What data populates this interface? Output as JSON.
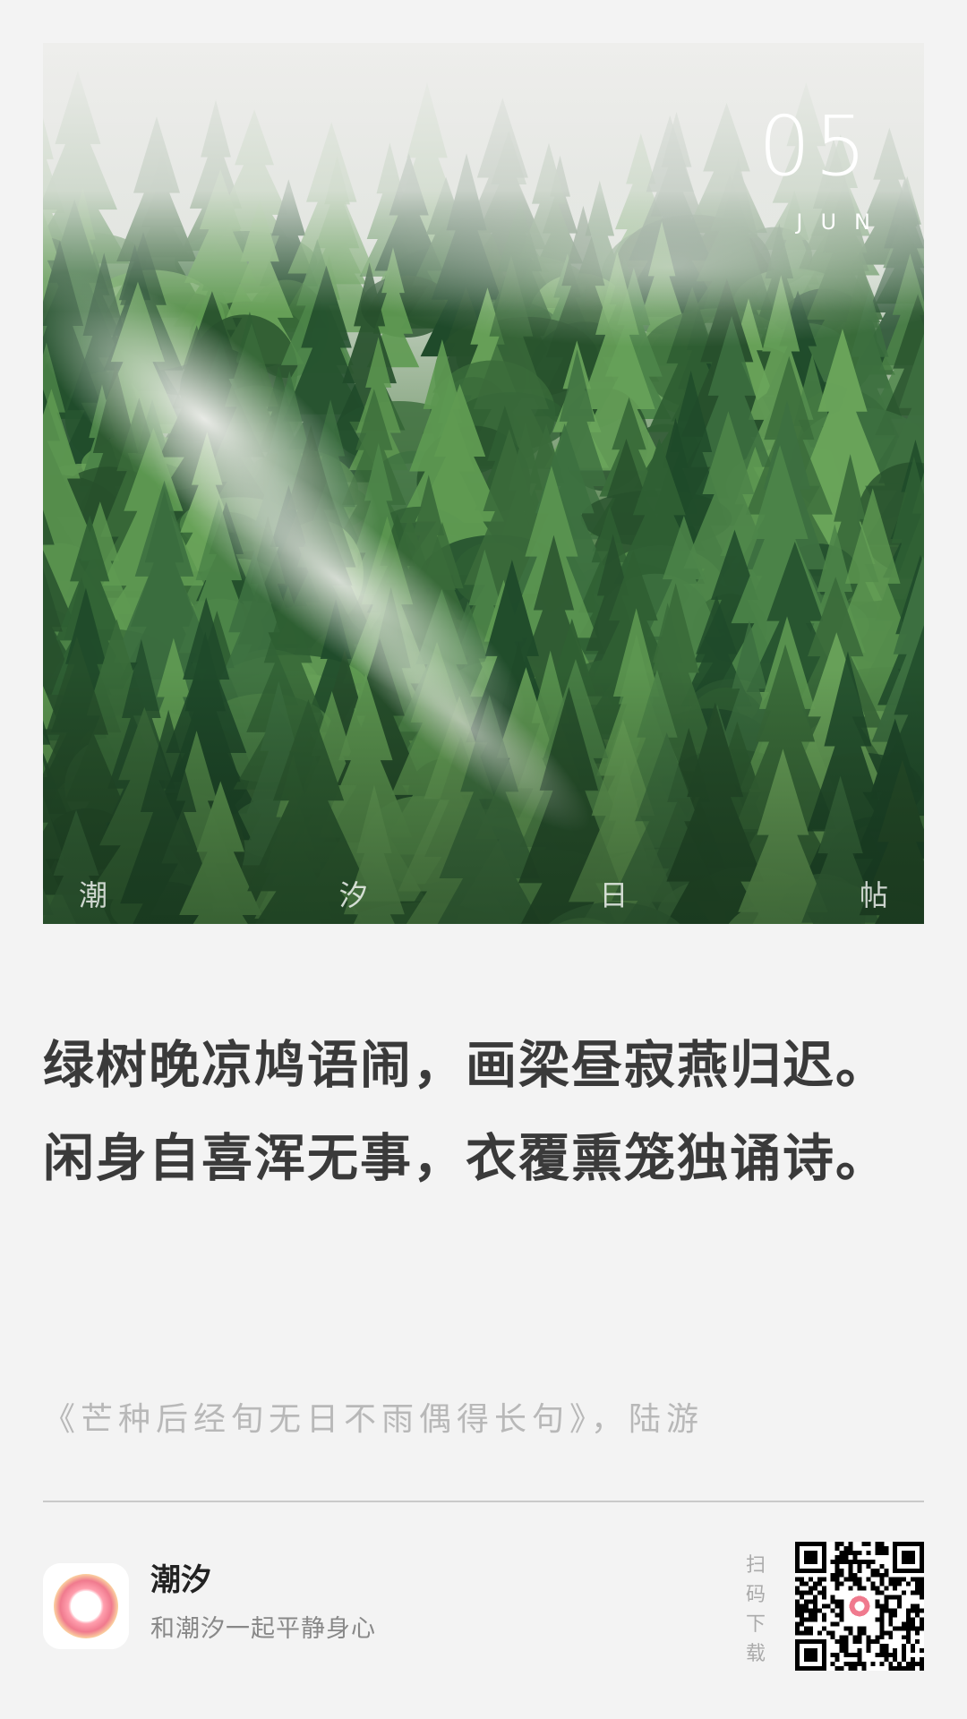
{
  "hero": {
    "day": "05",
    "month": "JUN",
    "brand_chars": [
      "潮",
      "汐",
      "日",
      "帖"
    ]
  },
  "poem": {
    "lines": [
      "绿树晚凉鸠语闹，画梁昼寂燕归迟。",
      "闲身自喜浑无事，衣覆熏笼独诵诗。"
    ],
    "source": "《芒种后经旬无日不雨偶得长句》，陆游"
  },
  "footer": {
    "app_name": "潮汐",
    "slogan": "和潮汐一起平静身心",
    "scan_chars": [
      "扫",
      "码",
      "下",
      "载"
    ]
  },
  "icons": {
    "app": "tide-app-icon",
    "qr": "qr-code-icon"
  },
  "colors": {
    "background": "#f3f3f3",
    "poem_text": "#3a3a3a",
    "source_text": "#b8b8b8",
    "forest_dark": "#1f4a2a",
    "forest_light": "#6aa45a",
    "icon_accent": "#f07a8e"
  }
}
